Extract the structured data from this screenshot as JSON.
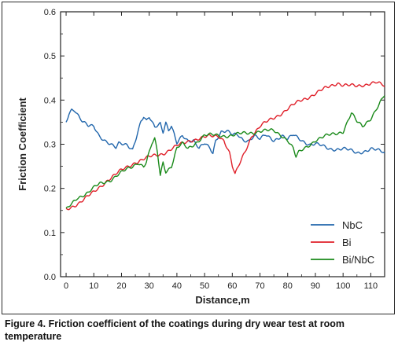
{
  "caption": "Figure 4. Friction coefficient of the coatings during dry wear test at room temperature",
  "chart_data": {
    "type": "line",
    "xlabel": "Distance,m",
    "ylabel": "Friction Coefficient",
    "xlim": [
      -2,
      115
    ],
    "ylim": [
      0.0,
      0.6
    ],
    "xticks": [
      "0",
      "10",
      "20",
      "30",
      "40",
      "50",
      "60",
      "70",
      "80",
      "90",
      "100",
      "110"
    ],
    "yticks": [
      "0.0",
      "0.1",
      "0.2",
      "0.3",
      "0.4",
      "0.5",
      "0.6"
    ],
    "grid": false,
    "legend_position": "bottom-right",
    "series": [
      {
        "name": "NbC",
        "color": "#2166ac",
        "x": [
          0,
          1,
          2,
          3,
          4,
          5,
          6,
          8,
          10,
          12,
          14,
          16,
          18,
          19,
          20,
          22,
          24,
          25,
          26,
          27,
          28,
          29,
          30,
          32,
          34,
          35,
          36,
          37,
          38,
          40,
          42,
          44,
          46,
          48,
          50,
          52,
          53,
          54,
          55,
          56,
          58,
          60,
          62,
          64,
          66,
          68,
          70,
          72,
          75,
          78,
          80,
          82,
          85,
          88,
          90,
          95,
          100,
          105,
          110,
          115
        ],
        "values": [
          0.35,
          0.37,
          0.38,
          0.38,
          0.37,
          0.36,
          0.35,
          0.34,
          0.34,
          0.32,
          0.31,
          0.3,
          0.29,
          0.3,
          0.3,
          0.3,
          0.29,
          0.31,
          0.33,
          0.35,
          0.36,
          0.35,
          0.36,
          0.34,
          0.35,
          0.33,
          0.35,
          0.33,
          0.34,
          0.3,
          0.32,
          0.31,
          0.31,
          0.29,
          0.3,
          0.29,
          0.28,
          0.31,
          0.32,
          0.33,
          0.33,
          0.32,
          0.32,
          0.31,
          0.31,
          0.32,
          0.31,
          0.32,
          0.31,
          0.32,
          0.31,
          0.32,
          0.31,
          0.3,
          0.3,
          0.29,
          0.29,
          0.28,
          0.29,
          0.28
        ]
      },
      {
        "name": "Bi",
        "color": "#e0202a",
        "x": [
          0,
          5,
          10,
          15,
          20,
          25,
          30,
          35,
          40,
          45,
          50,
          55,
          57,
          59,
          60,
          61,
          62,
          63,
          65,
          67,
          70,
          75,
          80,
          85,
          90,
          95,
          98,
          100,
          105,
          110,
          112,
          115
        ],
        "values": [
          0.15,
          0.17,
          0.19,
          0.22,
          0.24,
          0.26,
          0.27,
          0.28,
          0.295,
          0.31,
          0.315,
          0.32,
          0.31,
          0.28,
          0.25,
          0.23,
          0.245,
          0.26,
          0.29,
          0.32,
          0.34,
          0.36,
          0.38,
          0.4,
          0.415,
          0.43,
          0.44,
          0.435,
          0.43,
          0.44,
          0.44,
          0.43
        ]
      },
      {
        "name": "Bi/NbC",
        "color": "#1a8a1a",
        "x": [
          0,
          4,
          8,
          12,
          16,
          20,
          24,
          26,
          28,
          29,
          30,
          31,
          32,
          33,
          34,
          35,
          36,
          38,
          40,
          42,
          44,
          46,
          48,
          50,
          55,
          60,
          65,
          70,
          75,
          78,
          80,
          82,
          83,
          84,
          86,
          90,
          95,
          100,
          103,
          105,
          107,
          110,
          113,
          115
        ],
        "values": [
          0.15,
          0.18,
          0.19,
          0.21,
          0.22,
          0.235,
          0.25,
          0.26,
          0.25,
          0.26,
          0.28,
          0.3,
          0.31,
          0.28,
          0.23,
          0.26,
          0.24,
          0.25,
          0.29,
          0.3,
          0.29,
          0.3,
          0.31,
          0.32,
          0.32,
          0.32,
          0.325,
          0.33,
          0.33,
          0.32,
          0.31,
          0.29,
          0.27,
          0.28,
          0.29,
          0.31,
          0.32,
          0.33,
          0.37,
          0.35,
          0.34,
          0.36,
          0.39,
          0.41
        ]
      }
    ]
  }
}
